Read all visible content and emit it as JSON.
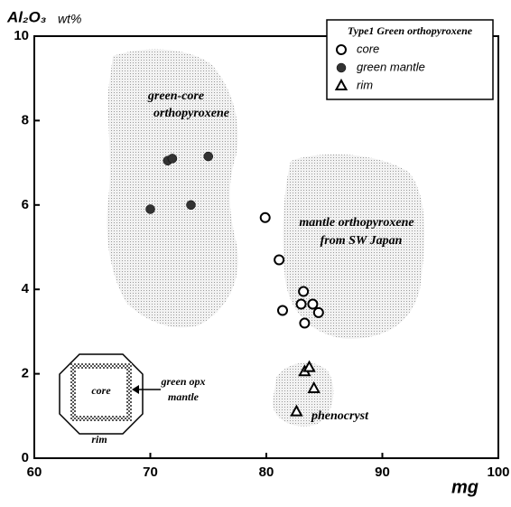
{
  "chart_data": {
    "type": "scatter",
    "title": "Type1 Green orthopyroxene",
    "xlabel": "mg",
    "ylabel": "Al₂O₃",
    "ylabel_unit": "wt%",
    "xlim": [
      60,
      100
    ],
    "ylim": [
      0,
      10
    ],
    "xticks": [
      60,
      70,
      80,
      90,
      100
    ],
    "yticks": [
      0,
      2,
      4,
      6,
      8,
      10
    ],
    "grid": false,
    "legend": "upper right",
    "series": [
      {
        "name": "core",
        "marker": "open-circle",
        "color": "#000000",
        "x": [
          79.9,
          81.1,
          81.4,
          83.2,
          83.0,
          84.0,
          84.5,
          83.3
        ],
        "values": [
          5.7,
          4.7,
          3.5,
          3.95,
          3.65,
          3.65,
          3.45,
          3.2
        ]
      },
      {
        "name": "green mantle",
        "marker": "filled-circle",
        "color": "#333333",
        "x": [
          70.0,
          73.5,
          71.5,
          71.9,
          75.0
        ],
        "values": [
          5.9,
          6.0,
          7.05,
          7.1,
          7.15
        ]
      },
      {
        "name": "rim",
        "marker": "triangle",
        "color": "#000000",
        "x": [
          82.6,
          83.3,
          83.7,
          84.1
        ],
        "values": [
          1.1,
          2.05,
          2.15,
          1.65
        ]
      }
    ],
    "annotations": [
      "green-core",
      "orthopyroxene",
      "mantle orthopyroxene",
      "from SW Japan",
      "phenocryst",
      "core",
      "green opx",
      "mantle",
      "rim"
    ]
  }
}
